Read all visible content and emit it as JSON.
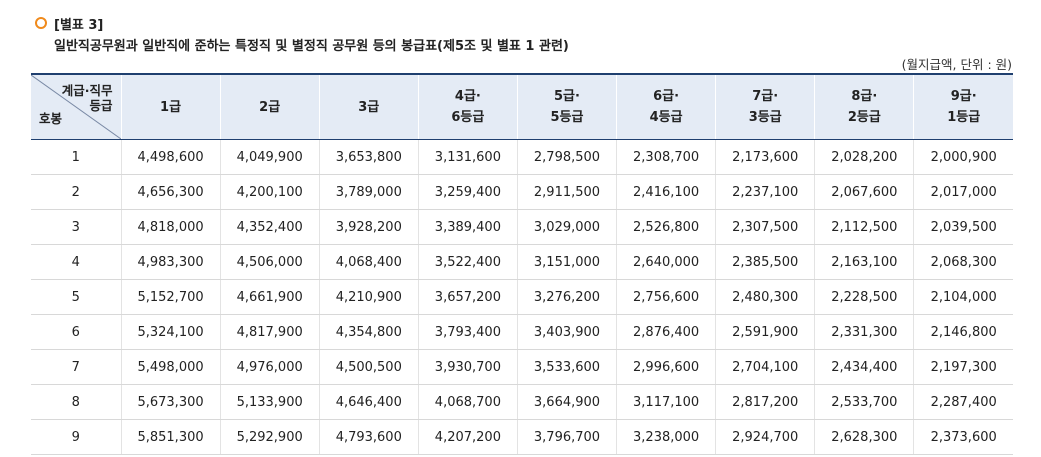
{
  "annex": "[별표 3]",
  "title": "일반직공무원과 일반직에 준하는 특정직 및 별정직 공무원 등의 봉급표(제5조 및 별표 1 관련)",
  "unit_note": "(월지급액, 단위 : 원)",
  "header": {
    "corner_top_line1": "계급·직무",
    "corner_top_line2": "등급",
    "corner_bottom": "호봉",
    "grades": [
      {
        "line1": "1급",
        "line2": ""
      },
      {
        "line1": "2급",
        "line2": ""
      },
      {
        "line1": "3급",
        "line2": ""
      },
      {
        "line1": "4급·",
        "line2": "6등급"
      },
      {
        "line1": "5급·",
        "line2": "5등급"
      },
      {
        "line1": "6급·",
        "line2": "4등급"
      },
      {
        "line1": "7급·",
        "line2": "3등급"
      },
      {
        "line1": "8급·",
        "line2": "2등급"
      },
      {
        "line1": "9급·",
        "line2": "1등급"
      }
    ]
  },
  "rows": [
    {
      "step": "1",
      "values": [
        "4,498,600",
        "4,049,900",
        "3,653,800",
        "3,131,600",
        "2,798,500",
        "2,308,700",
        "2,173,600",
        "2,028,200",
        "2,000,900"
      ]
    },
    {
      "step": "2",
      "values": [
        "4,656,300",
        "4,200,100",
        "3,789,000",
        "3,259,400",
        "2,911,500",
        "2,416,100",
        "2,237,100",
        "2,067,600",
        "2,017,000"
      ]
    },
    {
      "step": "3",
      "values": [
        "4,818,000",
        "4,352,400",
        "3,928,200",
        "3,389,400",
        "3,029,000",
        "2,526,800",
        "2,307,500",
        "2,112,500",
        "2,039,500"
      ]
    },
    {
      "step": "4",
      "values": [
        "4,983,300",
        "4,506,000",
        "4,068,400",
        "3,522,400",
        "3,151,000",
        "2,640,000",
        "2,385,500",
        "2,163,100",
        "2,068,300"
      ]
    },
    {
      "step": "5",
      "values": [
        "5,152,700",
        "4,661,900",
        "4,210,900",
        "3,657,200",
        "3,276,200",
        "2,756,600",
        "2,480,300",
        "2,228,500",
        "2,104,000"
      ]
    },
    {
      "step": "6",
      "values": [
        "5,324,100",
        "4,817,900",
        "4,354,800",
        "3,793,400",
        "3,403,900",
        "2,876,400",
        "2,591,900",
        "2,331,300",
        "2,146,800"
      ]
    },
    {
      "step": "7",
      "values": [
        "5,498,000",
        "4,976,000",
        "4,500,500",
        "3,930,700",
        "3,533,600",
        "2,996,600",
        "2,704,100",
        "2,434,400",
        "2,197,300"
      ]
    },
    {
      "step": "8",
      "values": [
        "5,673,300",
        "5,133,900",
        "4,646,400",
        "4,068,700",
        "3,664,900",
        "3,117,100",
        "2,817,200",
        "2,533,700",
        "2,287,400"
      ]
    },
    {
      "step": "9",
      "values": [
        "5,851,300",
        "5,292,900",
        "4,793,600",
        "4,207,200",
        "3,796,700",
        "3,238,000",
        "2,924,700",
        "2,628,300",
        "2,373,600"
      ]
    }
  ],
  "colors": {
    "bullet": "#f08a1c",
    "header_bg": "#e4ebf5",
    "header_border": "#1f3f6f"
  }
}
